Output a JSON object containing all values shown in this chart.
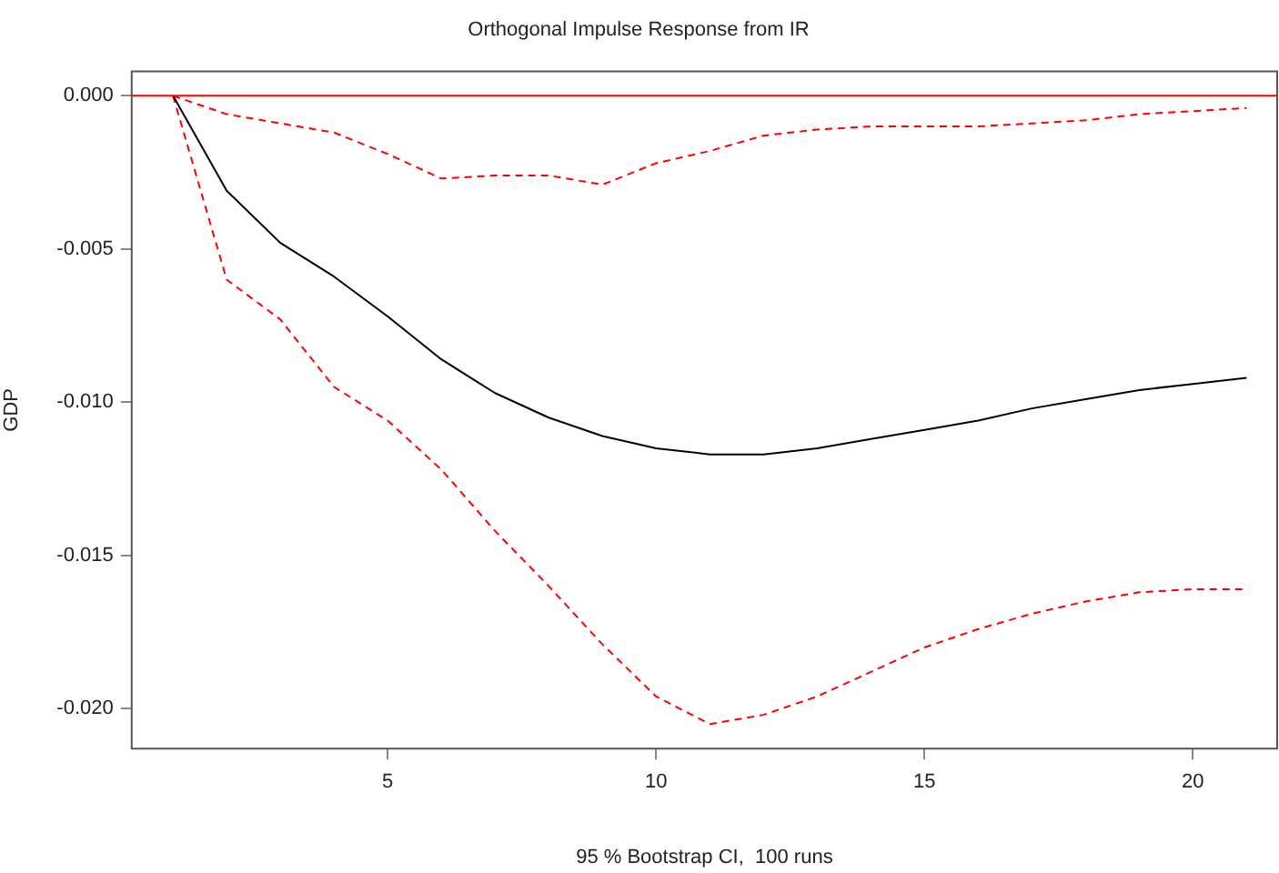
{
  "chart_data": {
    "type": "line",
    "title": "Orthogonal Impulse Response from IR",
    "xlabel": "95 % Bootstrap CI,  100 runs",
    "ylabel": "GDP",
    "x": [
      1,
      2,
      3,
      4,
      5,
      6,
      7,
      8,
      9,
      10,
      11,
      12,
      13,
      14,
      15,
      16,
      17,
      18,
      19,
      20,
      21
    ],
    "series": [
      {
        "color": "#000000",
        "line_style": "solid",
        "values": [
          0,
          -0.0031,
          -0.0048,
          -0.0059,
          -0.0072,
          -0.0086,
          -0.0097,
          -0.0105,
          -0.0111,
          -0.0115,
          -0.0117,
          -0.0117,
          -0.0115,
          -0.0112,
          -0.0109,
          -0.0106,
          -0.0102,
          -0.0099,
          -0.0096,
          -0.0094,
          -0.0092
        ]
      },
      {
        "color": "#ff0000",
        "line_style": "dashed",
        "values": [
          0,
          -0.0006,
          -0.0009,
          -0.0012,
          -0.0019,
          -0.0027,
          -0.0026,
          -0.0026,
          -0.0029,
          -0.0022,
          -0.0018,
          -0.0013,
          -0.0011,
          -0.001,
          -0.001,
          -0.001,
          -0.0009,
          -0.0008,
          -0.0006,
          -0.0005,
          -0.0004
        ]
      },
      {
        "color": "#ff0000",
        "line_style": "dashed",
        "values": [
          0,
          -0.006,
          -0.0073,
          -0.0095,
          -0.0106,
          -0.0122,
          -0.0142,
          -0.016,
          -0.0179,
          -0.0196,
          -0.0205,
          -0.0202,
          -0.0196,
          -0.0188,
          -0.018,
          -0.0174,
          -0.0169,
          -0.0165,
          -0.0162,
          -0.0161,
          -0.0161
        ]
      }
    ],
    "xlim": [
      0.23,
      21.57
    ],
    "xticks": [
      5,
      10,
      15,
      20
    ],
    "ylim": [
      -0.0213,
      0.0008
    ],
    "yticks": [
      {
        "value": 0,
        "label": "0.000"
      },
      {
        "value": -0.005,
        "label": "-0.005"
      },
      {
        "value": -0.01,
        "label": "-0.010"
      },
      {
        "value": -0.015,
        "label": "-0.015"
      },
      {
        "value": -0.02,
        "label": "-0.020"
      }
    ],
    "ref_lines": [
      {
        "axis": "y",
        "value": 0,
        "color": "#ff0000"
      }
    ],
    "grid": false,
    "legend": false,
    "marker": "none"
  }
}
